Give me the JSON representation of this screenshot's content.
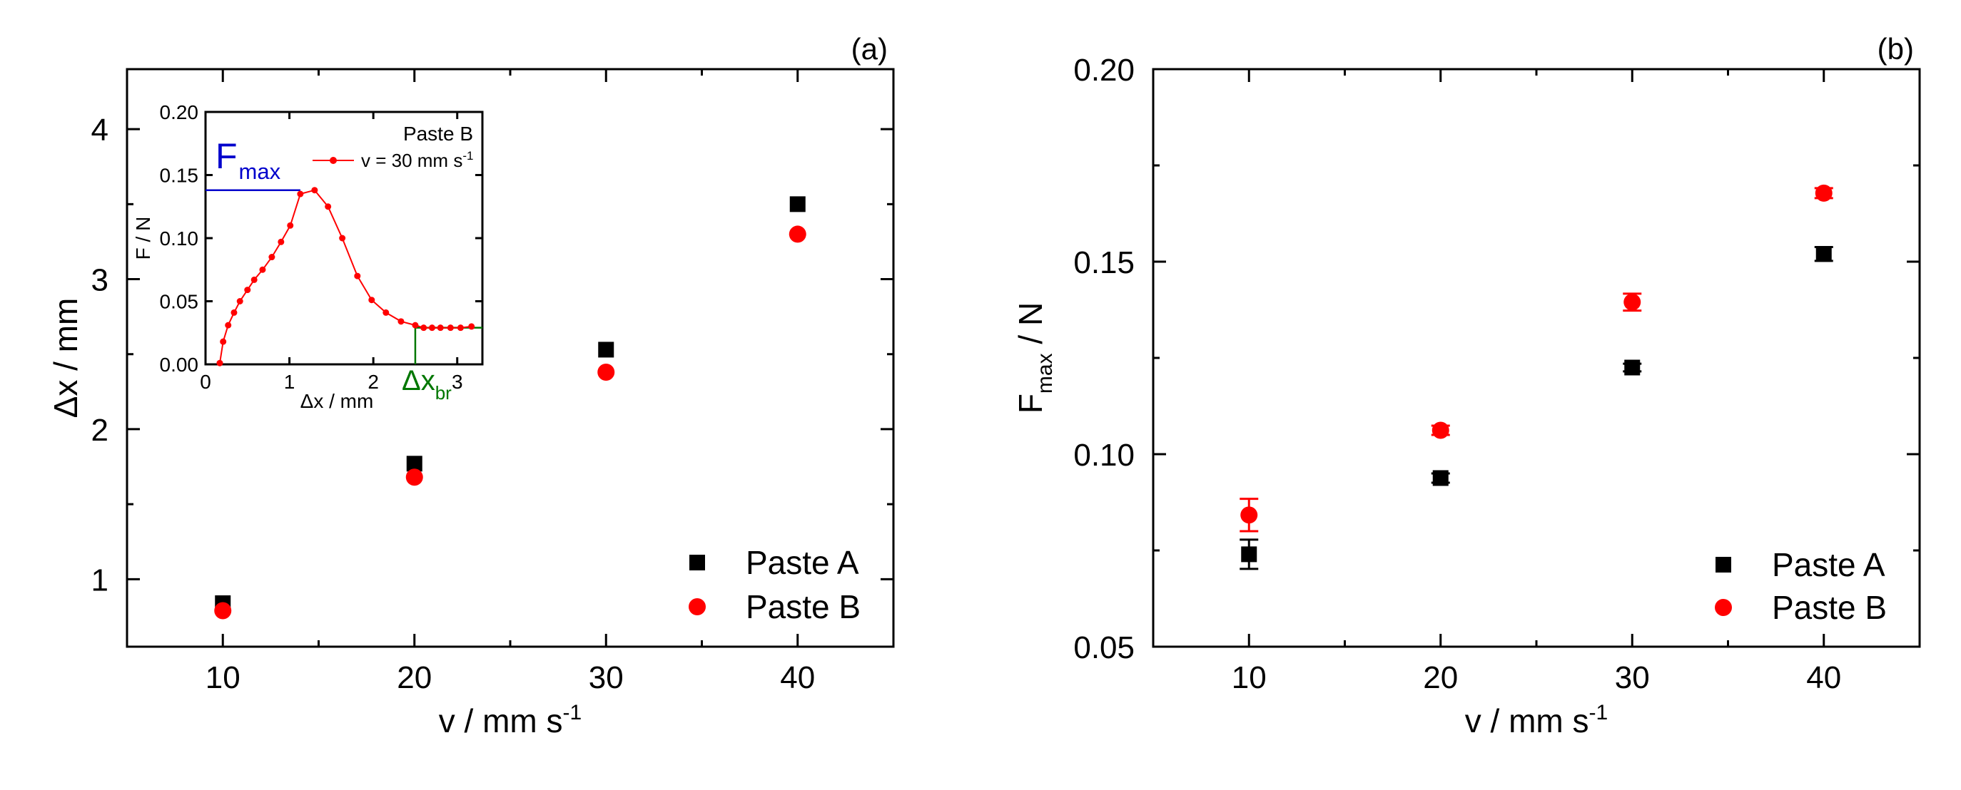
{
  "chart_data": [
    {
      "id": "a",
      "type": "scatter",
      "panel_label": "(a)",
      "xlabel": "v / mm s",
      "xlabel_sup": "-1",
      "ylabel": "Δx / mm",
      "xlim": [
        5,
        45
      ],
      "ylim": [
        0.55,
        4.4
      ],
      "xticks": [
        "10",
        "20",
        "30",
        "40"
      ],
      "xtick_values": [
        10,
        20,
        30,
        40
      ],
      "yticks": [
        "1",
        "2",
        "3",
        "4"
      ],
      "ytick_values": [
        1,
        2,
        3,
        4
      ],
      "series": [
        {
          "name": "Paste A",
          "marker": "square",
          "color": "#000000",
          "x": [
            10,
            20,
            30,
            40
          ],
          "y": [
            0.84,
            1.77,
            2.53,
            3.5
          ]
        },
        {
          "name": "Paste B",
          "marker": "circle",
          "color": "#ff0000",
          "x": [
            10,
            20,
            30,
            40
          ],
          "y": [
            0.79,
            1.68,
            2.38,
            3.3
          ]
        }
      ],
      "legend": {
        "position": "bottom-right",
        "items": [
          "Paste A",
          "Paste B"
        ]
      },
      "inset": {
        "type": "line",
        "xlabel": "Δx / mm",
        "ylabel": "F / N",
        "xlim": [
          0,
          3.3
        ],
        "ylim": [
          0,
          0.2
        ],
        "xticks": [
          "0",
          "1",
          "2",
          "3"
        ],
        "xtick_values": [
          0,
          1,
          2,
          3
        ],
        "yticks": [
          "0.00",
          "0.05",
          "0.10",
          "0.15",
          "0.20"
        ],
        "ytick_values": [
          0,
          0.05,
          0.1,
          0.15,
          0.2
        ],
        "title": "Paste B",
        "legend_label": "v = 30 mm s",
        "legend_sup": "-1",
        "series_color": "#ff0000",
        "x": [
          0.17,
          0.21,
          0.27,
          0.34,
          0.41,
          0.5,
          0.58,
          0.68,
          0.79,
          0.9,
          1.01,
          1.13,
          1.3,
          1.46,
          1.63,
          1.81,
          1.98,
          2.15,
          2.33,
          2.5,
          2.6,
          2.7,
          2.8,
          2.92,
          3.04,
          3.17
        ],
        "y": [
          0.001,
          0.018,
          0.031,
          0.041,
          0.05,
          0.059,
          0.067,
          0.075,
          0.085,
          0.097,
          0.11,
          0.135,
          0.138,
          0.125,
          0.1,
          0.07,
          0.051,
          0.041,
          0.034,
          0.031,
          0.029,
          0.029,
          0.029,
          0.029,
          0.029,
          0.03
        ],
        "fmax_label": "F",
        "fmax_sub": "max",
        "fmax_value": 0.138,
        "fmax_color": "#0000cc",
        "dxbr_label": "Δx",
        "dxbr_sub": "br",
        "dxbr_value": 2.5,
        "dxbr_color": "#007700"
      }
    },
    {
      "id": "b",
      "type": "scatter",
      "panel_label": "(b)",
      "xlabel": "v / mm s",
      "xlabel_sup": "-1",
      "ylabel": "F",
      "ylabel_sub": "max",
      "ylabel_suffix": " / N",
      "xlim": [
        5,
        45
      ],
      "ylim": [
        0.05,
        0.2
      ],
      "xticks": [
        "10",
        "20",
        "30",
        "40"
      ],
      "xtick_values": [
        10,
        20,
        30,
        40
      ],
      "yticks": [
        "0.05",
        "0.10",
        "0.15",
        "0.20"
      ],
      "ytick_values": [
        0.05,
        0.1,
        0.15,
        0.2
      ],
      "series": [
        {
          "name": "Paste A",
          "marker": "square",
          "color": "#000000",
          "x": [
            10,
            20,
            30,
            40
          ],
          "y": [
            0.074,
            0.0938,
            0.1225,
            0.152
          ],
          "err": [
            0.0038,
            0.0012,
            0.001,
            0.0018
          ]
        },
        {
          "name": "Paste B",
          "marker": "circle",
          "color": "#ff0000",
          "x": [
            10,
            20,
            30,
            40
          ],
          "y": [
            0.0842,
            0.1062,
            0.1395,
            0.1678
          ],
          "err": [
            0.0042,
            0.0012,
            0.0022,
            0.0013
          ]
        }
      ],
      "legend": {
        "position": "bottom-right",
        "items": [
          "Paste A",
          "Paste B"
        ]
      }
    }
  ]
}
